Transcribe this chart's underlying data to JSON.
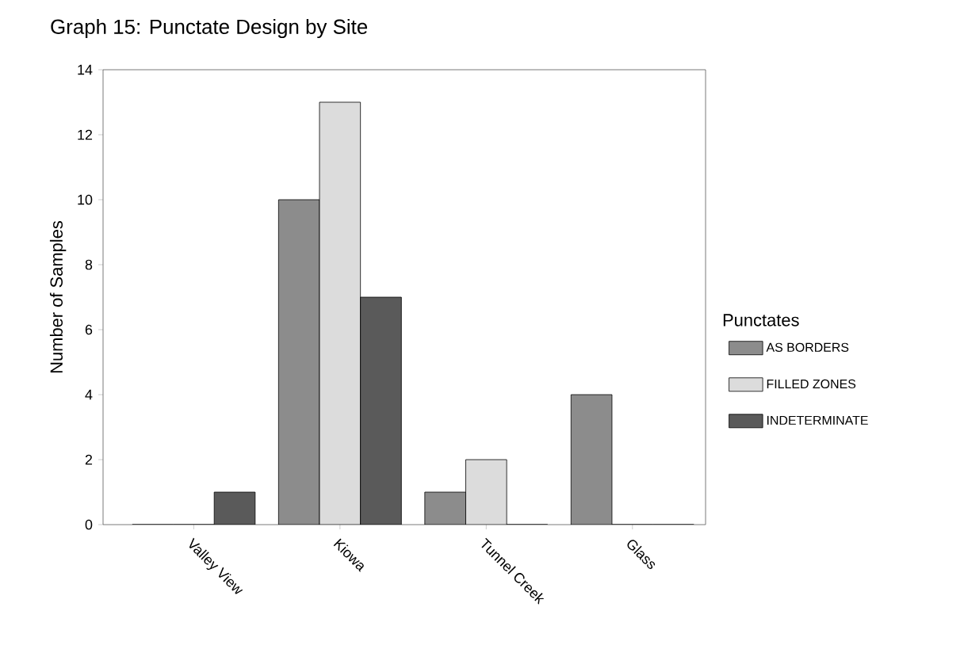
{
  "chart_data": {
    "type": "bar",
    "title": "Graph 15: Punctate Design by Site",
    "ylabel": "Number of Samples",
    "legend_title": "Punctates",
    "categories": [
      "Valley View",
      "Kiowa",
      "Tunnel Creek",
      "Glass"
    ],
    "series": [
      {
        "name": "AS BORDERS",
        "color": "#8c8c8c",
        "values": [
          0,
          10,
          1,
          4
        ]
      },
      {
        "name": "FILLED ZONES",
        "color": "#dcdcdc",
        "values": [
          0,
          13,
          2,
          0
        ]
      },
      {
        "name": "INDETERMINATE",
        "color": "#5a5a5a",
        "values": [
          1,
          7,
          0,
          0
        ]
      }
    ],
    "ylim": [
      0,
      14
    ],
    "yticks": [
      0,
      2,
      4,
      6,
      8,
      10,
      12,
      14
    ],
    "grid": false,
    "legend": "right"
  }
}
